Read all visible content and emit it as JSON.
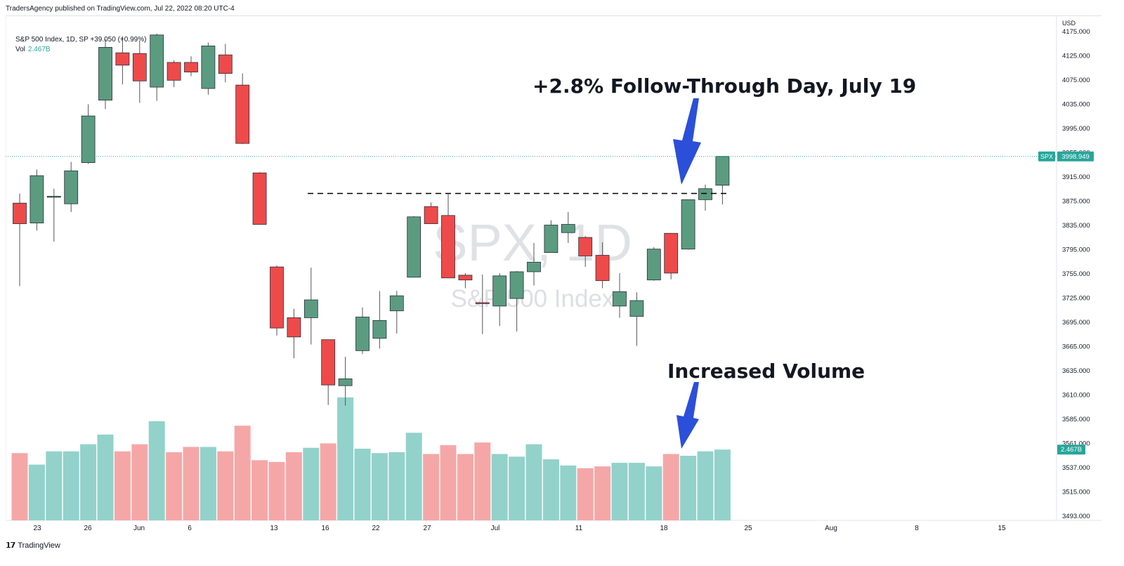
{
  "header": {
    "publish_text": "TradersAgency published on TradingView.com, Jul 22, 2022 08:20 UTC-4",
    "legend_symbol": "S&P 500 Index, 1D, SP",
    "legend_change": "+39.050 (+0.99%)",
    "vol_label": "Vol",
    "vol_value": "2.467B"
  },
  "footer": {
    "brand": "TradingView",
    "icon": "tradingview-logo-icon"
  },
  "colors": {
    "up": "#5b9c81",
    "down": "#ef4a4a",
    "vol_up": "#92d2cb",
    "vol_down": "#f5a7a7",
    "arrow": "#2b4fd9",
    "accent": "#26a69a"
  },
  "chart_data": {
    "type": "candlestick",
    "symbol": "SPX",
    "interval": "1D",
    "watermark_symbol": "SPX, 1D",
    "watermark_name": "S&P 500 Index",
    "currency": "USD",
    "y_range": [
      3480,
      4185
    ],
    "price_ticks": [
      "4175.000",
      "4125.000",
      "4075.000",
      "4035.000",
      "3995.000",
      "3955.000",
      "3915.000",
      "3875.000",
      "3835.000",
      "3795.000",
      "3755.000",
      "3725.000",
      "3695.000",
      "3665.000",
      "3635.000",
      "3610.000",
      "3585.000",
      "3561.000",
      "3537.000",
      "3515.000",
      "3493.000"
    ],
    "x_labels": [
      "23",
      "26",
      "Jun",
      "6",
      "13",
      "16",
      "22",
      "27",
      "Jul",
      "11",
      "18",
      "25",
      "Aug",
      "8",
      "15"
    ],
    "last_price_tag": {
      "symbol": "SPX",
      "value": "3998.949"
    },
    "volume_tag": "2.467B",
    "annotations": [
      {
        "text": "+2.8% Follow-Through Day, July 19"
      },
      {
        "text": "Increased Volume"
      }
    ],
    "resistance_level": 3945,
    "candles": [
      {
        "o": 3931,
        "h": 3945,
        "l": 3810,
        "c": 3901,
        "v": 0.76
      },
      {
        "o": 3902,
        "h": 3980,
        "l": 3891,
        "c": 3971,
        "v": 0.63
      },
      {
        "o": 3941,
        "h": 3952,
        "l": 3875,
        "c": 3941,
        "v": 0.78
      },
      {
        "o": 3930,
        "h": 3991,
        "l": 3918,
        "c": 3978,
        "v": 0.78
      },
      {
        "o": 3990,
        "h": 4075,
        "l": 3988,
        "c": 4058,
        "v": 0.86
      },
      {
        "o": 4081,
        "h": 4170,
        "l": 4068,
        "c": 4158,
        "v": 0.97
      },
      {
        "o": 4150,
        "h": 4174,
        "l": 4104,
        "c": 4132,
        "v": 0.78
      },
      {
        "o": 4149,
        "h": 4167,
        "l": 4077,
        "c": 4109,
        "v": 0.86
      },
      {
        "o": 4100,
        "h": 4178,
        "l": 4080,
        "c": 4176,
        "v": 1.12
      },
      {
        "o": 4136,
        "h": 4139,
        "l": 4100,
        "c": 4110,
        "v": 0.77
      },
      {
        "o": 4136,
        "h": 4145,
        "l": 4116,
        "c": 4122,
        "v": 0.83
      },
      {
        "o": 4098,
        "h": 4165,
        "l": 4089,
        "c": 4160,
        "v": 0.83
      },
      {
        "o": 4147,
        "h": 4163,
        "l": 4107,
        "c": 4120,
        "v": 0.78
      },
      {
        "o": 4103,
        "h": 4120,
        "l": 4017,
        "c": 4018,
        "v": 1.07
      },
      {
        "o": 3975,
        "h": 3976,
        "l": 3900,
        "c": 3900,
        "v": 0.68
      },
      {
        "o": 3838,
        "h": 3840,
        "l": 3738,
        "c": 3749,
        "v": 0.66
      },
      {
        "o": 3764,
        "h": 3777,
        "l": 3705,
        "c": 3736,
        "v": 0.77
      },
      {
        "o": 3764,
        "h": 3837,
        "l": 3725,
        "c": 3790,
        "v": 0.82
      },
      {
        "o": 3732,
        "h": 3732,
        "l": 3637,
        "c": 3666,
        "v": 0.87
      },
      {
        "o": 3665,
        "h": 3707,
        "l": 3636,
        "c": 3675,
        "v": 1.39
      },
      {
        "o": 3716,
        "h": 3779,
        "l": 3711,
        "c": 3765,
        "v": 0.81
      },
      {
        "o": 3734,
        "h": 3803,
        "l": 3719,
        "c": 3760,
        "v": 0.76
      },
      {
        "o": 3774,
        "h": 3803,
        "l": 3741,
        "c": 3796,
        "v": 0.77
      },
      {
        "o": 3823,
        "h": 3912,
        "l": 3823,
        "c": 3911,
        "v": 0.99
      },
      {
        "o": 3926,
        "h": 3932,
        "l": 3901,
        "c": 3901,
        "v": 0.75
      },
      {
        "o": 3913,
        "h": 3945,
        "l": 3822,
        "c": 3822,
        "v": 0.85
      },
      {
        "o": 3826,
        "h": 3829,
        "l": 3807,
        "c": 3819,
        "v": 0.75
      },
      {
        "o": 3786,
        "h": 3827,
        "l": 3740,
        "c": 3785,
        "v": 0.88
      },
      {
        "o": 3781,
        "h": 3829,
        "l": 3752,
        "c": 3825,
        "v": 0.75
      },
      {
        "o": 3792,
        "h": 3832,
        "l": 3744,
        "c": 3831,
        "v": 0.72
      },
      {
        "o": 3831,
        "h": 3873,
        "l": 3811,
        "c": 3845,
        "v": 0.86
      },
      {
        "o": 3859,
        "h": 3906,
        "l": 3859,
        "c": 3899,
        "v": 0.69
      },
      {
        "o": 3888,
        "h": 3918,
        "l": 3873,
        "c": 3900,
        "v": 0.62
      },
      {
        "o": 3881,
        "h": 3883,
        "l": 3838,
        "c": 3854,
        "v": 0.59
      },
      {
        "o": 3855,
        "h": 3874,
        "l": 3807,
        "c": 3818,
        "v": 0.61
      },
      {
        "o": 3781,
        "h": 3829,
        "l": 3764,
        "c": 3802,
        "v": 0.65
      },
      {
        "o": 3766,
        "h": 3801,
        "l": 3723,
        "c": 3789,
        "v": 0.65
      },
      {
        "o": 3819,
        "h": 3867,
        "l": 3818,
        "c": 3864,
        "v": 0.61
      },
      {
        "o": 3887,
        "h": 3887,
        "l": 3820,
        "c": 3829,
        "v": 0.75
      },
      {
        "o": 3864,
        "h": 3933,
        "l": 3863,
        "c": 3936,
        "v": 0.73
      },
      {
        "o": 3936,
        "h": 3958,
        "l": 3920,
        "c": 3952,
        "v": 0.78
      },
      {
        "o": 3957,
        "h": 3999,
        "l": 3929,
        "c": 3999,
        "v": 0.8
      }
    ]
  }
}
